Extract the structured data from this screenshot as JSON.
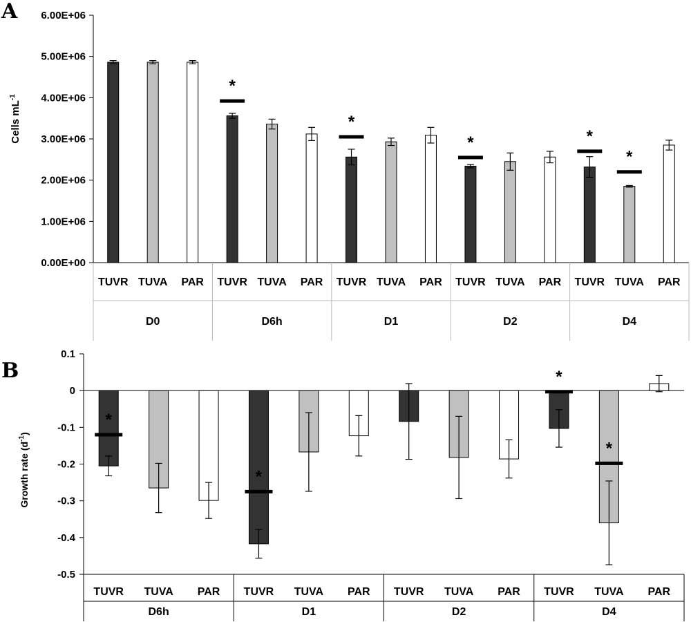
{
  "chart_data": [
    {
      "type": "bar",
      "panel": "A",
      "ylabel": "Cells mL",
      "ylabel_sup": "-1",
      "ylim": [
        0,
        6000000
      ],
      "yticks": [
        {
          "v": 0,
          "label": "0.00E+00"
        },
        {
          "v": 1000000,
          "label": "1.00E+06"
        },
        {
          "v": 2000000,
          "label": "2.00E+06"
        },
        {
          "v": 3000000,
          "label": "3.00E+06"
        },
        {
          "v": 4000000,
          "label": "4.00E+06"
        },
        {
          "v": 5000000,
          "label": "5.00E+06"
        },
        {
          "v": 6000000,
          "label": "6.00E+06"
        }
      ],
      "treatment_colors": {
        "TUVR": "#333333",
        "TUVA": "#c0c0c0",
        "PAR": "#ffffff"
      },
      "groups": [
        {
          "label": "D0",
          "bars": [
            {
              "cat": "TUVR",
              "value": 4860000,
              "err": 40000
            },
            {
              "cat": "TUVA",
              "value": 4860000,
              "err": 40000
            },
            {
              "cat": "PAR",
              "value": 4860000,
              "err": 40000
            }
          ]
        },
        {
          "label": "D6h",
          "bars": [
            {
              "cat": "TUVR",
              "value": 3560000,
              "err": 60000,
              "sig": "*",
              "line": 3920000
            },
            {
              "cat": "TUVA",
              "value": 3360000,
              "err": 120000
            },
            {
              "cat": "PAR",
              "value": 3120000,
              "err": 160000
            }
          ]
        },
        {
          "label": "D1",
          "bars": [
            {
              "cat": "TUVR",
              "value": 2560000,
              "err": 190000,
              "sig": "*",
              "line": 3050000
            },
            {
              "cat": "TUVA",
              "value": 2930000,
              "err": 90000
            },
            {
              "cat": "PAR",
              "value": 3090000,
              "err": 190000
            }
          ]
        },
        {
          "label": "D2",
          "bars": [
            {
              "cat": "TUVR",
              "value": 2340000,
              "err": 40000,
              "sig": "*",
              "line": 2550000
            },
            {
              "cat": "TUVA",
              "value": 2450000,
              "err": 210000
            },
            {
              "cat": "PAR",
              "value": 2560000,
              "err": 140000
            }
          ]
        },
        {
          "label": "D4",
          "bars": [
            {
              "cat": "TUVR",
              "value": 2320000,
              "err": 250000,
              "sig": "*",
              "line": 2700000
            },
            {
              "cat": "TUVA",
              "value": 1850000,
              "err": 20000,
              "sig": "*",
              "line": 2200000
            },
            {
              "cat": "PAR",
              "value": 2850000,
              "err": 120000
            }
          ]
        }
      ]
    },
    {
      "type": "bar",
      "panel": "B",
      "ylabel": "Growth rate (d",
      "ylabel_sup": "-1",
      "ylabel_end": ")",
      "ylim": [
        -0.5,
        0.1
      ],
      "yticks": [
        {
          "v": 0.1,
          "label": "0.1"
        },
        {
          "v": 0,
          "label": "0"
        },
        {
          "v": -0.1,
          "label": "-0.1"
        },
        {
          "v": -0.2,
          "label": "-0.2"
        },
        {
          "v": -0.3,
          "label": "-0.3"
        },
        {
          "v": -0.4,
          "label": "-0.4"
        },
        {
          "v": -0.5,
          "label": "-0.5"
        }
      ],
      "treatment_colors": {
        "TUVR": "#333333",
        "TUVA": "#c0c0c0",
        "PAR": "#ffffff"
      },
      "groups": [
        {
          "label": "D6h",
          "bars": [
            {
              "cat": "TUVR",
              "value": -0.205,
              "err": 0.027,
              "sig": "*",
              "line": -0.12
            },
            {
              "cat": "TUVA",
              "value": -0.265,
              "err": 0.067
            },
            {
              "cat": "PAR",
              "value": -0.299,
              "err": 0.049
            }
          ]
        },
        {
          "label": "D1",
          "bars": [
            {
              "cat": "TUVR",
              "value": -0.417,
              "err": 0.039,
              "sig": "*",
              "line": -0.275
            },
            {
              "cat": "TUVA",
              "value": -0.167,
              "err": 0.107
            },
            {
              "cat": "PAR",
              "value": -0.123,
              "err": 0.055
            }
          ]
        },
        {
          "label": "D2",
          "bars": [
            {
              "cat": "TUVR",
              "value": -0.084,
              "err": 0.103
            },
            {
              "cat": "TUVA",
              "value": -0.182,
              "err": 0.112
            },
            {
              "cat": "PAR",
              "value": -0.186,
              "err": 0.052
            }
          ]
        },
        {
          "label": "D4",
          "bars": [
            {
              "cat": "TUVR",
              "value": -0.103,
              "err": 0.051,
              "sig": "*",
              "line": -0.003
            },
            {
              "cat": "TUVA",
              "value": -0.36,
              "err": 0.114,
              "sig": "*",
              "line": -0.198
            },
            {
              "cat": "PAR",
              "value": 0.019,
              "err": 0.022
            }
          ]
        }
      ]
    }
  ]
}
